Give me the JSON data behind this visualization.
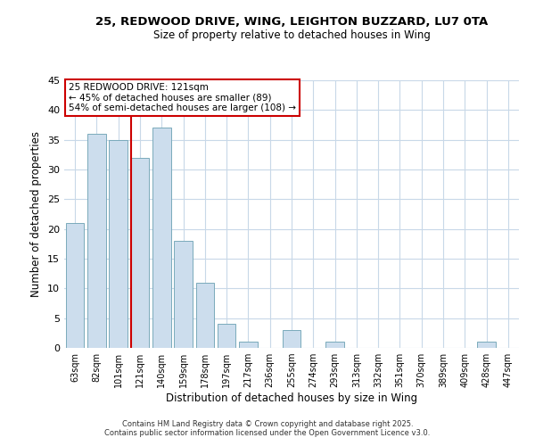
{
  "title_line1": "25, REDWOOD DRIVE, WING, LEIGHTON BUZZARD, LU7 0TA",
  "title_line2": "Size of property relative to detached houses in Wing",
  "xlabel": "Distribution of detached houses by size in Wing",
  "ylabel": "Number of detached properties",
  "bar_color": "#ccdded",
  "bar_edge_color": "#7aaabb",
  "categories": [
    "63sqm",
    "82sqm",
    "101sqm",
    "121sqm",
    "140sqm",
    "159sqm",
    "178sqm",
    "197sqm",
    "217sqm",
    "236sqm",
    "255sqm",
    "274sqm",
    "293sqm",
    "313sqm",
    "332sqm",
    "351sqm",
    "370sqm",
    "389sqm",
    "409sqm",
    "428sqm",
    "447sqm"
  ],
  "values": [
    21,
    36,
    35,
    32,
    37,
    18,
    11,
    4,
    1,
    0,
    3,
    0,
    1,
    0,
    0,
    0,
    0,
    0,
    0,
    1,
    0
  ],
  "ylim": [
    0,
    45
  ],
  "yticks": [
    0,
    5,
    10,
    15,
    20,
    25,
    30,
    35,
    40,
    45
  ],
  "property_index": 3,
  "annotation_line1": "25 REDWOOD DRIVE: 121sqm",
  "annotation_line2": "← 45% of detached houses are smaller (89)",
  "annotation_line3": "54% of semi-detached houses are larger (108) →",
  "annotation_box_color": "#ffffff",
  "annotation_box_edge": "#cc0000",
  "vline_color": "#cc0000",
  "background_color": "#ffffff",
  "grid_color": "#c8d8e8",
  "footer_line1": "Contains HM Land Registry data © Crown copyright and database right 2025.",
  "footer_line2": "Contains public sector information licensed under the Open Government Licence v3.0."
}
